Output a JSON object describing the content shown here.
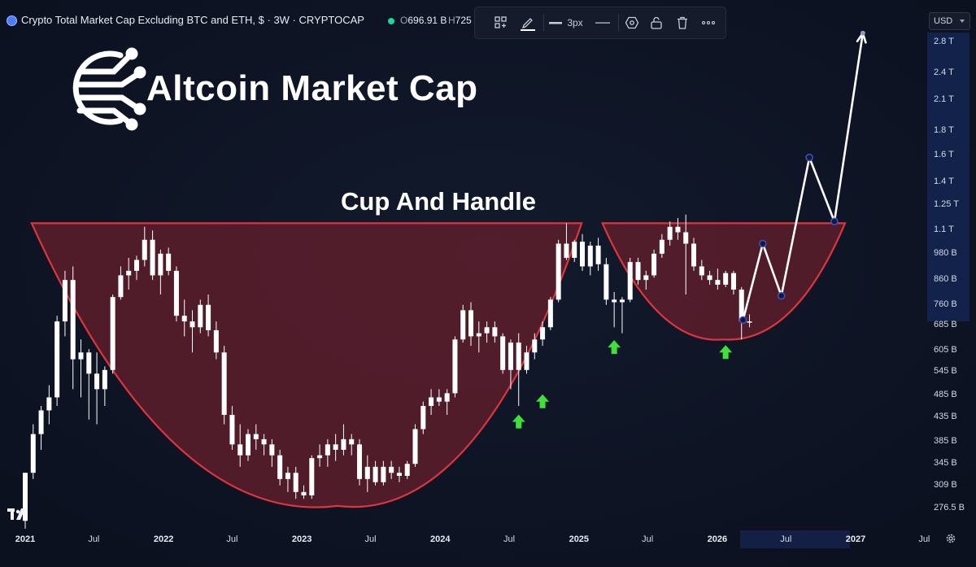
{
  "header": {
    "title": "Crypto Total Market Cap Excluding BTC and ETH, $ · 3W · CRYPTOCAP",
    "ohlc_open_label": "O",
    "ohlc_open": "696.91 B",
    "ohlc_high_label": "H",
    "ohlc_high": "725"
  },
  "toolbar": {
    "stroke_width": "3px"
  },
  "currency": "USD",
  "logo": {
    "text": "Altcoin Market Cap"
  },
  "colors": {
    "background": "#0f1524",
    "candle": "#ffffff",
    "pattern_fill": "#6e1f2c",
    "pattern_stroke": "#e0343c",
    "arrow": "#3fe03a",
    "projection": "#ffffff"
  },
  "chart_data": {
    "type": "candlestick",
    "symbol": "CRYPTOCAP",
    "interval": "3W",
    "y_scale": "log",
    "ylim": [
      250,
      3000
    ],
    "y_ticks": [
      {
        "label": "2.8 T",
        "value": 2800
      },
      {
        "label": "2.4 T",
        "value": 2400
      },
      {
        "label": "2.1 T",
        "value": 2100
      },
      {
        "label": "1.8 T",
        "value": 1800
      },
      {
        "label": "1.6 T",
        "value": 1600
      },
      {
        "label": "1.4 T",
        "value": 1400
      },
      {
        "label": "1.25 T",
        "value": 1250
      },
      {
        "label": "1.1 T",
        "value": 1100
      },
      {
        "label": "980 B",
        "value": 980
      },
      {
        "label": "860 B",
        "value": 860
      },
      {
        "label": "760 B",
        "value": 760
      },
      {
        "label": "685 B",
        "value": 685
      },
      {
        "label": "605 B",
        "value": 605
      },
      {
        "label": "545 B",
        "value": 545
      },
      {
        "label": "485 B",
        "value": 485
      },
      {
        "label": "435 B",
        "value": 435
      },
      {
        "label": "385 B",
        "value": 385
      },
      {
        "label": "345 B",
        "value": 345
      },
      {
        "label": "309 B",
        "value": 309
      },
      {
        "label": "276.5 B",
        "value": 276.5
      }
    ],
    "x_ticks": [
      {
        "label": "2021",
        "date": "2021-01-01",
        "year": true
      },
      {
        "label": "Jul",
        "date": "2021-07-01",
        "year": false
      },
      {
        "label": "2022",
        "date": "2022-01-01",
        "year": true
      },
      {
        "label": "Jul",
        "date": "2022-07-01",
        "year": false
      },
      {
        "label": "2023",
        "date": "2023-01-01",
        "year": true
      },
      {
        "label": "Jul",
        "date": "2023-07-01",
        "year": false
      },
      {
        "label": "2024",
        "date": "2024-01-01",
        "year": true
      },
      {
        "label": "Jul",
        "date": "2024-07-01",
        "year": false
      },
      {
        "label": "2025",
        "date": "2025-01-01",
        "year": true
      },
      {
        "label": "Jul",
        "date": "2025-07-01",
        "year": false
      },
      {
        "label": "2026",
        "date": "2026-01-01",
        "year": true
      },
      {
        "label": "Jul",
        "date": "2026-07-01",
        "year": false
      },
      {
        "label": "2027",
        "date": "2027-01-01",
        "year": true
      },
      {
        "label": "Jul",
        "date": "2027-07-01",
        "year": false
      }
    ],
    "candles": [
      {
        "date": "2021-01-01",
        "open": 260,
        "high": 330,
        "low": 250,
        "close": 330
      },
      {
        "date": "2021-01-22",
        "open": 330,
        "high": 420,
        "low": 320,
        "close": 400
      },
      {
        "date": "2021-02-12",
        "open": 400,
        "high": 460,
        "low": 370,
        "close": 450
      },
      {
        "date": "2021-03-05",
        "open": 450,
        "high": 510,
        "low": 420,
        "close": 480
      },
      {
        "date": "2021-03-26",
        "open": 480,
        "high": 720,
        "low": 460,
        "close": 700
      },
      {
        "date": "2021-04-16",
        "open": 700,
        "high": 900,
        "low": 650,
        "close": 860
      },
      {
        "date": "2021-05-07",
        "open": 860,
        "high": 920,
        "low": 500,
        "close": 580
      },
      {
        "date": "2021-05-28",
        "open": 580,
        "high": 640,
        "low": 480,
        "close": 600
      },
      {
        "date": "2021-06-18",
        "open": 600,
        "high": 610,
        "low": 430,
        "close": 540
      },
      {
        "date": "2021-07-09",
        "open": 540,
        "high": 600,
        "low": 420,
        "close": 500
      },
      {
        "date": "2021-07-30",
        "open": 500,
        "high": 560,
        "low": 460,
        "close": 550
      },
      {
        "date": "2021-08-20",
        "open": 550,
        "high": 800,
        "low": 540,
        "close": 790
      },
      {
        "date": "2021-09-10",
        "open": 790,
        "high": 920,
        "low": 780,
        "close": 880
      },
      {
        "date": "2021-10-01",
        "open": 880,
        "high": 960,
        "low": 820,
        "close": 900
      },
      {
        "date": "2021-10-22",
        "open": 900,
        "high": 970,
        "low": 860,
        "close": 950
      },
      {
        "date": "2021-11-12",
        "open": 950,
        "high": 1120,
        "low": 920,
        "close": 1050
      },
      {
        "date": "2021-12-03",
        "open": 1050,
        "high": 1100,
        "low": 860,
        "close": 880
      },
      {
        "date": "2021-12-24",
        "open": 880,
        "high": 1000,
        "low": 800,
        "close": 980
      },
      {
        "date": "2022-01-14",
        "open": 980,
        "high": 1010,
        "low": 880,
        "close": 900
      },
      {
        "date": "2022-02-04",
        "open": 900,
        "high": 920,
        "low": 700,
        "close": 720
      },
      {
        "date": "2022-02-25",
        "open": 720,
        "high": 780,
        "low": 650,
        "close": 700
      },
      {
        "date": "2022-03-18",
        "open": 700,
        "high": 740,
        "low": 600,
        "close": 680
      },
      {
        "date": "2022-04-08",
        "open": 680,
        "high": 780,
        "low": 660,
        "close": 760
      },
      {
        "date": "2022-04-29",
        "open": 760,
        "high": 800,
        "low": 650,
        "close": 670
      },
      {
        "date": "2022-05-20",
        "open": 670,
        "high": 700,
        "low": 580,
        "close": 600
      },
      {
        "date": "2022-06-10",
        "open": 600,
        "high": 620,
        "low": 420,
        "close": 440
      },
      {
        "date": "2022-07-01",
        "open": 440,
        "high": 460,
        "low": 370,
        "close": 380
      },
      {
        "date": "2022-07-22",
        "open": 380,
        "high": 420,
        "low": 340,
        "close": 360
      },
      {
        "date": "2022-08-12",
        "open": 360,
        "high": 410,
        "low": 350,
        "close": 400
      },
      {
        "date": "2022-09-02",
        "open": 400,
        "high": 420,
        "low": 370,
        "close": 390
      },
      {
        "date": "2022-09-23",
        "open": 390,
        "high": 400,
        "low": 360,
        "close": 380
      },
      {
        "date": "2022-10-14",
        "open": 380,
        "high": 390,
        "low": 340,
        "close": 360
      },
      {
        "date": "2022-11-04",
        "open": 360,
        "high": 370,
        "low": 310,
        "close": 320
      },
      {
        "date": "2022-11-25",
        "open": 320,
        "high": 340,
        "low": 300,
        "close": 330
      },
      {
        "date": "2022-12-16",
        "open": 330,
        "high": 340,
        "low": 290,
        "close": 300
      },
      {
        "date": "2023-01-06",
        "open": 300,
        "high": 310,
        "low": 290,
        "close": 295
      },
      {
        "date": "2023-01-27",
        "open": 295,
        "high": 360,
        "low": 290,
        "close": 355
      },
      {
        "date": "2023-02-17",
        "open": 355,
        "high": 380,
        "low": 340,
        "close": 360
      },
      {
        "date": "2023-03-10",
        "open": 360,
        "high": 390,
        "low": 340,
        "close": 380
      },
      {
        "date": "2023-03-31",
        "open": 380,
        "high": 400,
        "low": 350,
        "close": 370
      },
      {
        "date": "2023-04-21",
        "open": 370,
        "high": 420,
        "low": 360,
        "close": 390
      },
      {
        "date": "2023-05-12",
        "open": 390,
        "high": 400,
        "low": 360,
        "close": 380
      },
      {
        "date": "2023-06-02",
        "open": 380,
        "high": 390,
        "low": 310,
        "close": 320
      },
      {
        "date": "2023-06-23",
        "open": 320,
        "high": 360,
        "low": 300,
        "close": 340
      },
      {
        "date": "2023-07-14",
        "open": 340,
        "high": 350,
        "low": 310,
        "close": 315
      },
      {
        "date": "2023-08-04",
        "open": 315,
        "high": 350,
        "low": 310,
        "close": 340
      },
      {
        "date": "2023-08-25",
        "open": 340,
        "high": 350,
        "low": 320,
        "close": 330
      },
      {
        "date": "2023-09-15",
        "open": 330,
        "high": 340,
        "low": 315,
        "close": 325
      },
      {
        "date": "2023-10-06",
        "open": 325,
        "high": 350,
        "low": 320,
        "close": 345
      },
      {
        "date": "2023-10-27",
        "open": 345,
        "high": 420,
        "low": 340,
        "close": 410
      },
      {
        "date": "2023-11-17",
        "open": 410,
        "high": 470,
        "low": 400,
        "close": 460
      },
      {
        "date": "2023-12-08",
        "open": 460,
        "high": 500,
        "low": 440,
        "close": 480
      },
      {
        "date": "2023-12-29",
        "open": 480,
        "high": 500,
        "low": 460,
        "close": 470
      },
      {
        "date": "2024-01-19",
        "open": 470,
        "high": 500,
        "low": 440,
        "close": 490
      },
      {
        "date": "2024-02-09",
        "open": 490,
        "high": 650,
        "low": 480,
        "close": 640
      },
      {
        "date": "2024-03-01",
        "open": 640,
        "high": 760,
        "low": 630,
        "close": 740
      },
      {
        "date": "2024-03-22",
        "open": 740,
        "high": 770,
        "low": 620,
        "close": 650
      },
      {
        "date": "2024-04-12",
        "open": 650,
        "high": 700,
        "low": 600,
        "close": 660
      },
      {
        "date": "2024-05-03",
        "open": 660,
        "high": 700,
        "low": 630,
        "close": 680
      },
      {
        "date": "2024-05-24",
        "open": 680,
        "high": 700,
        "low": 630,
        "close": 650
      },
      {
        "date": "2024-06-14",
        "open": 650,
        "high": 660,
        "low": 540,
        "close": 550
      },
      {
        "date": "2024-07-05",
        "open": 550,
        "high": 640,
        "low": 500,
        "close": 630
      },
      {
        "date": "2024-07-26",
        "open": 630,
        "high": 660,
        "low": 460,
        "close": 550
      },
      {
        "date": "2024-08-16",
        "open": 550,
        "high": 620,
        "low": 540,
        "close": 600
      },
      {
        "date": "2024-09-06",
        "open": 600,
        "high": 660,
        "low": 580,
        "close": 640
      },
      {
        "date": "2024-09-27",
        "open": 640,
        "high": 700,
        "low": 620,
        "close": 680
      },
      {
        "date": "2024-10-18",
        "open": 680,
        "high": 790,
        "low": 670,
        "close": 780
      },
      {
        "date": "2024-11-08",
        "open": 780,
        "high": 1050,
        "low": 770,
        "close": 1030
      },
      {
        "date": "2024-11-29",
        "open": 1030,
        "high": 1140,
        "low": 950,
        "close": 960
      },
      {
        "date": "2024-12-20",
        "open": 960,
        "high": 1050,
        "low": 940,
        "close": 1040
      },
      {
        "date": "2025-01-10",
        "open": 1040,
        "high": 1080,
        "low": 900,
        "close": 920
      },
      {
        "date": "2025-01-31",
        "open": 920,
        "high": 1040,
        "low": 880,
        "close": 1020
      },
      {
        "date": "2025-02-21",
        "open": 1020,
        "high": 1060,
        "low": 900,
        "close": 930
      },
      {
        "date": "2025-03-14",
        "open": 930,
        "high": 960,
        "low": 760,
        "close": 780
      },
      {
        "date": "2025-04-04",
        "open": 780,
        "high": 810,
        "low": 680,
        "close": 770
      },
      {
        "date": "2025-04-25",
        "open": 770,
        "high": 790,
        "low": 660,
        "close": 780
      },
      {
        "date": "2025-05-16",
        "open": 780,
        "high": 960,
        "low": 770,
        "close": 940
      },
      {
        "date": "2025-06-06",
        "open": 940,
        "high": 960,
        "low": 840,
        "close": 860
      },
      {
        "date": "2025-06-27",
        "open": 860,
        "high": 900,
        "low": 820,
        "close": 880
      },
      {
        "date": "2025-07-18",
        "open": 880,
        "high": 1000,
        "low": 870,
        "close": 980
      },
      {
        "date": "2025-08-08",
        "open": 980,
        "high": 1080,
        "low": 960,
        "close": 1050
      },
      {
        "date": "2025-08-29",
        "open": 1050,
        "high": 1150,
        "low": 1020,
        "close": 1120
      },
      {
        "date": "2025-09-19",
        "open": 1120,
        "high": 1170,
        "low": 1050,
        "close": 1090
      },
      {
        "date": "2025-10-10",
        "open": 1090,
        "high": 1190,
        "low": 800,
        "close": 1030
      },
      {
        "date": "2025-10-31",
        "open": 1030,
        "high": 1060,
        "low": 900,
        "close": 920
      },
      {
        "date": "2025-11-21",
        "open": 920,
        "high": 950,
        "low": 860,
        "close": 880
      },
      {
        "date": "2025-12-12",
        "open": 880,
        "high": 900,
        "low": 840,
        "close": 860
      },
      {
        "date": "2026-01-02",
        "open": 860,
        "high": 910,
        "low": 820,
        "close": 840
      },
      {
        "date": "2026-01-23",
        "open": 840,
        "high": 900,
        "low": 830,
        "close": 890
      },
      {
        "date": "2026-02-13",
        "open": 890,
        "high": 900,
        "low": 800,
        "close": 820
      },
      {
        "date": "2026-03-06",
        "open": 820,
        "high": 830,
        "low": 640,
        "close": 700
      },
      {
        "date": "2026-03-27",
        "open": 700,
        "high": 725,
        "low": 680,
        "close": 697
      }
    ],
    "patterns": [
      {
        "name": "Cup And Handle",
        "type": "cup",
        "rim_start": {
          "date": "2021-01-18",
          "value": 1140
        },
        "rim_end": {
          "date": "2025-01-08",
          "value": 1140
        },
        "bottom": {
          "date": "2023-04-05",
          "value": 280
        },
        "left_rim": {
          "date": "2021-01-18",
          "value": 1140
        },
        "right_rim": {
          "date": "2025-01-08",
          "value": 1140
        }
      },
      {
        "name": "handle",
        "type": "cup",
        "left_rim": {
          "date": "2025-03-04",
          "value": 1140
        },
        "right_rim": {
          "date": "2026-12-04",
          "value": 1140
        },
        "bottom": {
          "date": "2026-01-17",
          "value": 640
        }
      }
    ],
    "projection": [
      {
        "date": "2026-03-10",
        "value": 705
      },
      {
        "date": "2026-05-01",
        "value": 1030
      },
      {
        "date": "2026-06-19",
        "value": 795
      },
      {
        "date": "2026-09-01",
        "value": 1580
      },
      {
        "date": "2026-11-06",
        "value": 1150
      },
      {
        "date": "2027-01-20",
        "value": 2930
      }
    ],
    "arrows": [
      {
        "date": "2024-07-26",
        "value": 425
      },
      {
        "date": "2024-09-27",
        "value": 470
      },
      {
        "date": "2025-04-04",
        "value": 615
      },
      {
        "date": "2026-01-23",
        "value": 600
      }
    ]
  }
}
